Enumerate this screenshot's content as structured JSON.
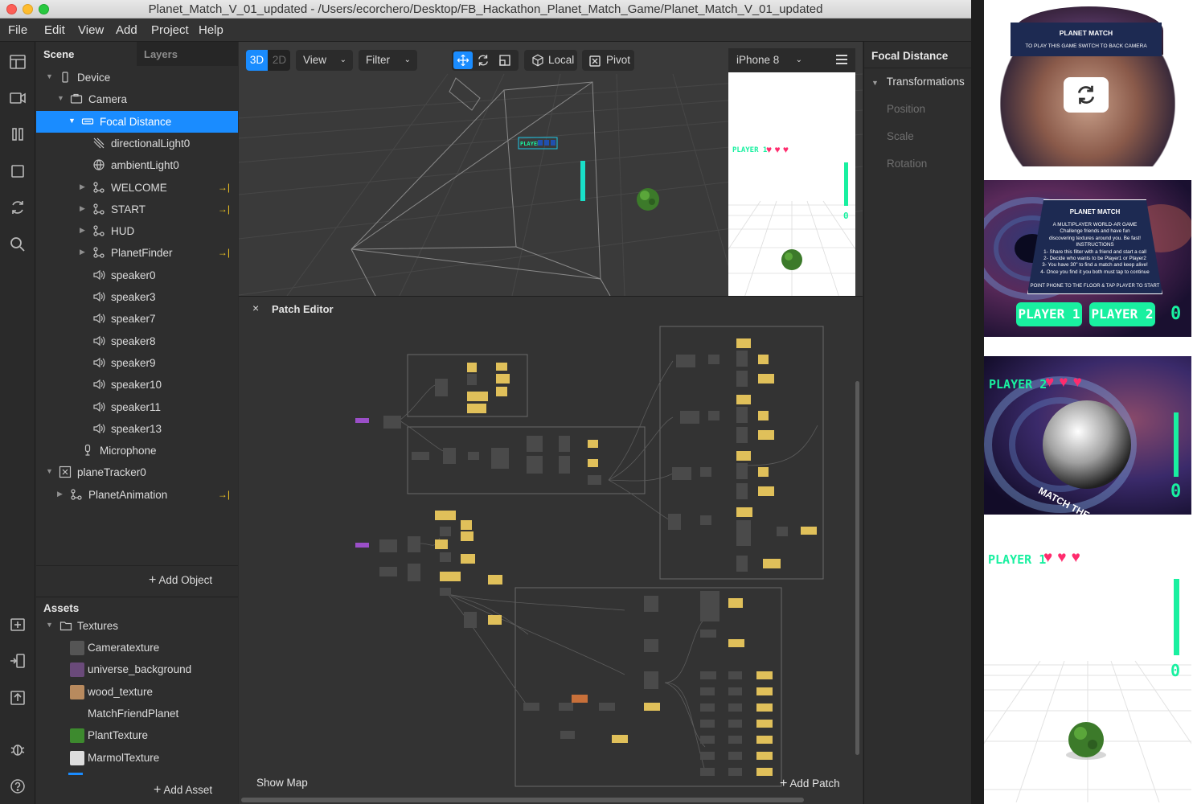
{
  "window": {
    "title": "Planet_Match_V_01_updated - /Users/ecorchero/Desktop/FB_Hackathon_Planet_Match_Game/Planet_Match_V_01_updated"
  },
  "menu": [
    "File",
    "Edit",
    "View",
    "Add",
    "Project",
    "Help"
  ],
  "scene_panel": {
    "tabs": [
      "Scene",
      "Layers"
    ],
    "tree": [
      {
        "label": "Device",
        "icon": "device-icon"
      },
      {
        "label": "Camera",
        "icon": "camera-icon"
      },
      {
        "label": "Focal Distance",
        "icon": "focal-distance-icon",
        "selected": true
      },
      {
        "label": "directionalLight0",
        "icon": "directional-light-icon"
      },
      {
        "label": "ambientLight0",
        "icon": "ambient-light-icon"
      },
      {
        "label": "WELCOME",
        "icon": "null-object-icon",
        "marker": true
      },
      {
        "label": "START",
        "icon": "null-object-icon",
        "marker": true
      },
      {
        "label": "HUD",
        "icon": "null-object-icon"
      },
      {
        "label": "PlanetFinder",
        "icon": "null-object-icon",
        "marker": true
      },
      {
        "label": "speaker0",
        "icon": "speaker-icon"
      },
      {
        "label": "speaker3",
        "icon": "speaker-icon"
      },
      {
        "label": "speaker7",
        "icon": "speaker-icon"
      },
      {
        "label": "speaker8",
        "icon": "speaker-icon"
      },
      {
        "label": "speaker9",
        "icon": "speaker-icon"
      },
      {
        "label": "speaker10",
        "icon": "speaker-icon"
      },
      {
        "label": "speaker11",
        "icon": "speaker-icon"
      },
      {
        "label": "speaker13",
        "icon": "speaker-icon"
      },
      {
        "label": "Microphone",
        "icon": "microphone-icon"
      },
      {
        "label": "planeTracker0",
        "icon": "plane-tracker-icon"
      },
      {
        "label": "PlanetAnimation",
        "icon": "null-object-icon",
        "marker": true
      }
    ],
    "add_object": "Add Object"
  },
  "assets_panel": {
    "title": "Assets",
    "folder": "Textures",
    "items": [
      {
        "label": "Cameratexture",
        "color": "#555555"
      },
      {
        "label": "universe_background",
        "color": "#6a4a7a"
      },
      {
        "label": "wood_texture",
        "color": "#b88a5e"
      },
      {
        "label": "MatchFriendPlanet",
        "color": "#2e2e2e"
      },
      {
        "label": "PlantTexture",
        "color": "#3d8a2e"
      },
      {
        "label": "MarmolTexture",
        "color": "#dddddd"
      }
    ],
    "add_asset": "Add Asset"
  },
  "viewport": {
    "mode_3d": "3D",
    "mode_2d": "2D",
    "view_btn": "View",
    "filter_btn": "Filter",
    "local_btn": "Local",
    "pivot_btn": "Pivot",
    "device": "iPhone 8",
    "sim_player": "PLAYER 1",
    "sim_score": "0"
  },
  "patch_editor": {
    "title": "Patch Editor",
    "show_map": "Show Map",
    "add_patch": "Add Patch"
  },
  "inspector": {
    "title": "Focal Distance",
    "section": "Transformations",
    "props": [
      "Position",
      "Scale",
      "Rotation"
    ]
  },
  "gallery": {
    "shot1": {
      "logo": "PLANET MATCH",
      "sub": "TO PLAY THIS GAME SWITCH TO BACK CAMERA"
    },
    "shot2": {
      "logo": "PLANET MATCH",
      "lines": [
        "A MULTIPLAYER WORLD-AR GAME",
        "Challenge friends and have fun",
        "discovering textures around you. Be fast!",
        "INSTRUCTIONS",
        "1- Share this filter with a friend and start a call",
        "2- Decide who wants to be Player1 or Player2",
        "3- You have 30\" to find a match and keep alive!",
        "4- Once you find it you both must tap to continue"
      ],
      "footer": "POINT PHONE TO THE FLOOR & TAP PLAYER TO START",
      "player1": "PLAYER 1",
      "player2": "PLAYER 2",
      "score": "0"
    },
    "shot3": {
      "player": "PLAYER 2",
      "caption": "MATCH THE PLANET",
      "score": "0"
    },
    "shot4": {
      "player": "PLAYER 1",
      "score": "0"
    }
  },
  "colors": {
    "accent": "#1a8cff",
    "patch_node": "#e0c05a",
    "patch_gray": "#4a4a4a",
    "patch_purple": "#9b4fc8",
    "patch_orange": "#c8703a",
    "game_green": "#19f0a0",
    "heart": "#ff2b6d"
  }
}
